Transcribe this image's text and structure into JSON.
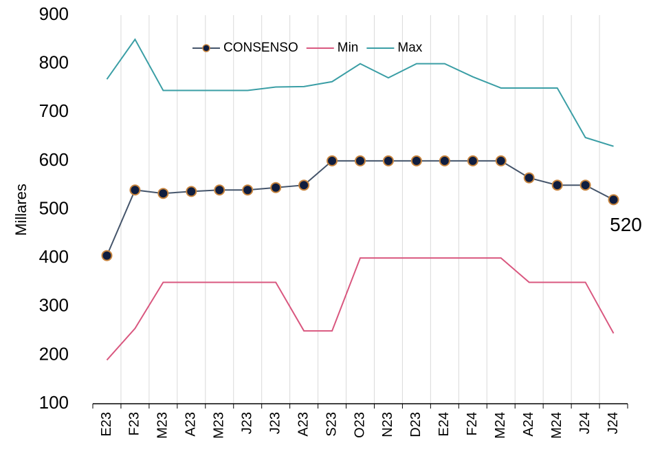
{
  "chart_data": {
    "type": "line",
    "y_label": "Millares",
    "categories": [
      "E23",
      "F23",
      "M23",
      "A23",
      "M23",
      "J23",
      "J23",
      "A23",
      "S23",
      "O23",
      "N23",
      "D23",
      "E24",
      "F24",
      "M24",
      "A24",
      "M24",
      "J24",
      "J24"
    ],
    "series": [
      {
        "name": "CONSENSO",
        "color": "#44546a",
        "marker": true,
        "values": [
          405,
          540,
          533,
          537,
          540,
          540,
          545,
          550,
          600,
          600,
          600,
          600,
          600,
          600,
          600,
          565,
          550,
          550,
          520
        ]
      },
      {
        "name": "Min",
        "color": "#d9577f",
        "marker": false,
        "values": [
          190,
          255,
          350,
          350,
          350,
          350,
          350,
          250,
          250,
          400,
          400,
          400,
          400,
          400,
          400,
          350,
          350,
          350,
          245
        ]
      },
      {
        "name": "Max",
        "color": "#3a9ea5",
        "marker": false,
        "values": [
          768,
          850,
          745,
          745,
          745,
          745,
          752,
          753,
          763,
          800,
          771,
          800,
          800,
          773,
          750,
          750,
          750,
          648,
          630
        ]
      }
    ],
    "ylim": [
      100,
      900
    ],
    "yticks": [
      100,
      200,
      300,
      400,
      500,
      600,
      700,
      800,
      900
    ],
    "grid": true,
    "legend": "top"
  }
}
